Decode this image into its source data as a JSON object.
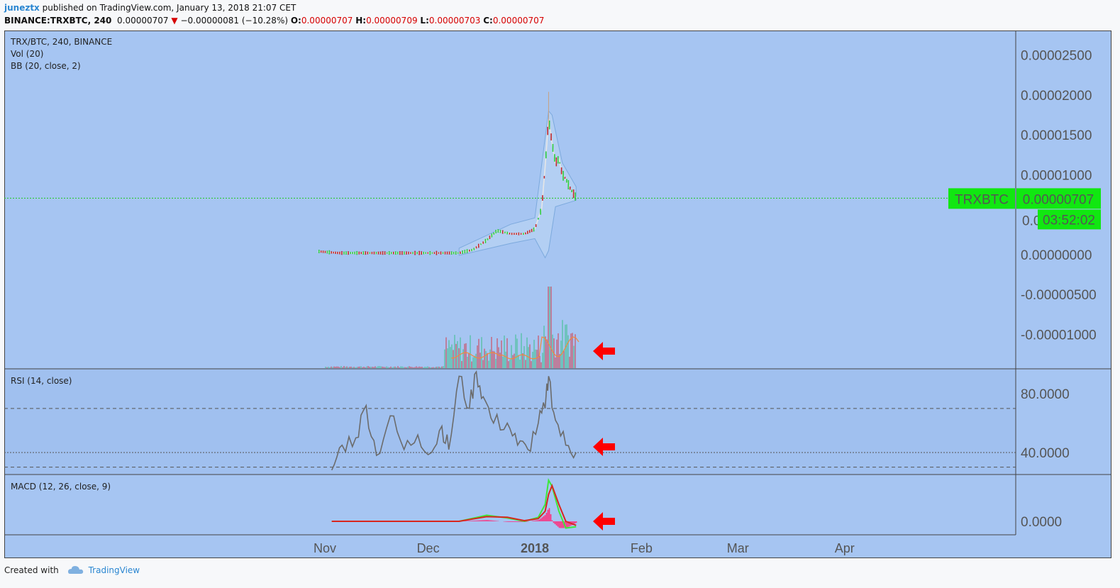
{
  "header": {
    "username": "juneztx",
    "published_text": "published on TradingView.com, January 13, 2018 21:07 CET",
    "symbol_line": "BINANCE:TRXBTC, 240",
    "last": "0.00000707",
    "change": "−0.00000081 (−10.28%)",
    "o_label": "O:",
    "o_value": "0.00000707",
    "h_label": "H:",
    "h_value": "0.00000709",
    "l_label": "L:",
    "l_value": "0.00000703",
    "c_label": "C:",
    "c_value": "0.00000707"
  },
  "panes": {
    "price_legend": [
      "TRX/BTC, 240, BINANCE",
      "Vol (20)",
      "BB (20, close, 2)"
    ],
    "rsi_legend": "RSI (14, close)",
    "macd_legend": "MACD (12, 26, close, 9)"
  },
  "price_badge": {
    "ticker": "TRXBTC",
    "price": "0.00000707",
    "countdown": "03:52:02",
    "obscured_tick_fragment": "0.0",
    "color": "#11e711"
  },
  "footer": {
    "created_with": "Created with",
    "brand": "TradingView"
  },
  "colors": {
    "pane_bg": "#a6c5f2",
    "up": "#2ecc40",
    "down": "#c0282d",
    "arrow": "#ff0000",
    "rsi_line": "#6b6b6b",
    "macd_line": "#3ce83c",
    "signal_line": "#d8261e",
    "histogram": "#ff2b7a"
  },
  "chart_data": [
    {
      "type": "candlestick",
      "title": "TRX/BTC, 240, BINANCE",
      "y_ticks": [
        "0.00002500",
        "0.00002000",
        "0.00001500",
        "0.00001000",
        "0.00000000",
        "-0.00000500",
        "-0.00001000"
      ],
      "ylim": [
        -1.37e-05,
        2.72e-05
      ],
      "last_price": 7.07e-06,
      "overlays": [
        "Vol (20)",
        "BB (20, close, 2)"
      ],
      "close_series": {
        "x": [
          "2017-10-30",
          "2017-11-05",
          "2017-11-15",
          "2017-11-25",
          "2017-12-05",
          "2017-12-10",
          "2017-12-14",
          "2017-12-18",
          "2017-12-21",
          "2017-12-25",
          "2017-12-29",
          "2018-01-01",
          "2018-01-03",
          "2018-01-04",
          "2018-01-05",
          "2018-01-06",
          "2018-01-07",
          "2018-01-08",
          "2018-01-09",
          "2018-01-10",
          "2018-01-11",
          "2018-01-12",
          "2018-01-13"
        ],
        "values": [
          4e-07,
          2e-07,
          2e-07,
          2e-07,
          2e-07,
          2e-07,
          6e-07,
          1.8e-06,
          3e-06,
          2.6e-06,
          2.6e-06,
          3.2e-06,
          5.8e-06,
          1.1e-05,
          1.7e-05,
          1.4e-05,
          1.15e-05,
          1.2e-05,
          1e-05,
          9.5e-06,
          8.5e-06,
          7.8e-06,
          7.1e-06
        ]
      },
      "bb_upper": {
        "x": [
          "2017-12-10",
          "2017-12-25",
          "2018-01-01",
          "2018-01-05",
          "2018-01-06",
          "2018-01-09",
          "2018-01-13"
        ],
        "values": [
          8e-07,
          3.8e-06,
          4.6e-06,
          1.8e-05,
          1.75e-05,
          1.15e-05,
          8.5e-06
        ]
      },
      "bb_lower": {
        "x": [
          "2017-12-10",
          "2017-12-25",
          "2018-01-01",
          "2018-01-04",
          "2018-01-05",
          "2018-01-07",
          "2018-01-13"
        ],
        "values": [
          -1e-07,
          1.4e-06,
          2e-06,
          -4e-07,
          5e-07,
          6e-06,
          6.8e-06
        ]
      },
      "volume_peak_date": "2018-01-05"
    },
    {
      "type": "line",
      "title": "RSI (14, close)",
      "y_ticks": [
        "80.0000",
        "40.0000"
      ],
      "ylim": [
        25,
        97
      ],
      "bands": [
        70,
        30
      ],
      "series": [
        {
          "x": [
            "2017-11-03",
            "2017-11-06",
            "2017-11-10",
            "2017-11-13",
            "2017-11-16",
            "2017-11-20",
            "2017-11-24",
            "2017-11-28",
            "2017-12-02",
            "2017-12-05",
            "2017-12-07",
            "2017-12-10",
            "2017-12-13",
            "2017-12-15",
            "2017-12-17",
            "2017-12-20",
            "2017-12-24",
            "2017-12-27",
            "2017-12-30",
            "2018-01-02",
            "2018-01-04",
            "2018-01-05",
            "2018-01-07",
            "2018-01-10",
            "2018-01-13"
          ],
          "values": [
            28,
            45,
            50,
            72,
            38,
            65,
            42,
            52,
            40,
            58,
            42,
            92,
            70,
            95,
            78,
            60,
            60,
            45,
            42,
            60,
            70,
            92,
            62,
            45,
            40
          ]
        }
      ]
    },
    {
      "type": "line",
      "title": "MACD (12, 26, close, 9)",
      "y_ticks": [
        "0.0000"
      ],
      "series": [
        {
          "x": [
            "2017-11-03",
            "2017-12-10",
            "2017-12-18",
            "2017-12-24",
            "2017-12-29",
            "2018-01-02",
            "2018-01-04",
            "2018-01-05",
            "2018-01-06",
            "2018-01-08",
            "2018-01-10",
            "2018-01-13"
          ],
          "values": [
            0,
            0,
            0.9,
            0.5,
            0,
            0.6,
            2.5,
            6.1,
            5.2,
            1.5,
            -1.0,
            -0.8
          ]
        },
        {
          "x": [
            "2017-11-03",
            "2017-12-10",
            "2017-12-18",
            "2017-12-24",
            "2017-12-29",
            "2018-01-02",
            "2018-01-04",
            "2018-01-05",
            "2018-01-06",
            "2018-01-08",
            "2018-01-10",
            "2018-01-13"
          ],
          "values": [
            0,
            0,
            0.7,
            0.6,
            0.1,
            0.4,
            1.5,
            4.0,
            5.3,
            2.5,
            0.0,
            -0.6
          ]
        }
      ]
    }
  ],
  "x_axis": {
    "ticks": [
      "Nov",
      "Dec",
      "2018",
      "Feb",
      "Mar",
      "Apr"
    ]
  }
}
